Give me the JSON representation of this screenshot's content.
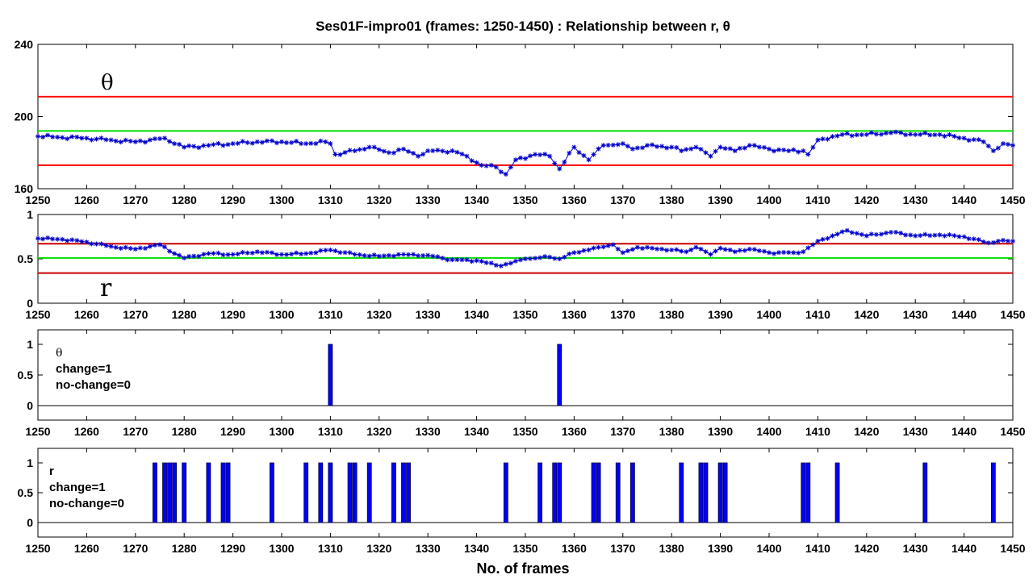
{
  "chart_data": {
    "title": "Ses01F-impro01 (frames: 1250-1450) : Relationship between r, θ",
    "xlabel": "No. of frames",
    "x_range": [
      1250,
      1450
    ],
    "x_ticks": [
      "1250",
      "1260",
      "1270",
      "1280",
      "1290",
      "1300",
      "1310",
      "1320",
      "1330",
      "1340",
      "1350",
      "1360",
      "1370",
      "1380",
      "1390",
      "1400",
      "1410",
      "1420",
      "1430",
      "1440",
      "1450"
    ],
    "panels": [
      {
        "type": "line",
        "label": "θ",
        "ylim": [
          160,
          240
        ],
        "y_ticks": [
          "160",
          "200",
          "240"
        ],
        "colors": {
          "series": "#0000cc",
          "upper": "#ff0000",
          "mid": "#00dd00",
          "lower": "#ff0000"
        },
        "thresholds": {
          "upper": 211,
          "mid": 192,
          "lower": 173
        },
        "anchors": [
          [
            1250,
            189
          ],
          [
            1260,
            188
          ],
          [
            1265,
            187
          ],
          [
            1270,
            186
          ],
          [
            1276,
            188
          ],
          [
            1280,
            183
          ],
          [
            1285,
            184
          ],
          [
            1290,
            185
          ],
          [
            1295,
            186
          ],
          [
            1300,
            186
          ],
          [
            1305,
            185
          ],
          [
            1309,
            186
          ],
          [
            1310,
            185
          ],
          [
            1311,
            179
          ],
          [
            1315,
            181
          ],
          [
            1318,
            183
          ],
          [
            1322,
            180
          ],
          [
            1325,
            182
          ],
          [
            1328,
            178
          ],
          [
            1330,
            181
          ],
          [
            1335,
            181
          ],
          [
            1338,
            178
          ],
          [
            1341,
            173
          ],
          [
            1344,
            172
          ],
          [
            1346,
            168
          ],
          [
            1348,
            176
          ],
          [
            1352,
            179
          ],
          [
            1355,
            178
          ],
          [
            1357,
            171
          ],
          [
            1360,
            183
          ],
          [
            1363,
            176
          ],
          [
            1366,
            184
          ],
          [
            1370,
            185
          ],
          [
            1372,
            182
          ],
          [
            1375,
            184
          ],
          [
            1380,
            183
          ],
          [
            1382,
            181
          ],
          [
            1385,
            183
          ],
          [
            1388,
            178
          ],
          [
            1390,
            183
          ],
          [
            1393,
            181
          ],
          [
            1396,
            184
          ],
          [
            1400,
            182
          ],
          [
            1404,
            181
          ],
          [
            1407,
            181
          ],
          [
            1408,
            179
          ],
          [
            1410,
            187
          ],
          [
            1415,
            190
          ],
          [
            1420,
            190
          ],
          [
            1425,
            191
          ],
          [
            1430,
            190
          ],
          [
            1435,
            190
          ],
          [
            1440,
            188
          ],
          [
            1444,
            186
          ],
          [
            1446,
            181
          ],
          [
            1448,
            185
          ],
          [
            1450,
            184
          ]
        ]
      },
      {
        "type": "line",
        "label": "r",
        "ylim": [
          0,
          1
        ],
        "y_ticks": [
          "0",
          "0.5",
          "1"
        ],
        "colors": {
          "series": "#0000cc",
          "upper": "#cc0000",
          "mid": "#00dd00",
          "lower": "#cc0000"
        },
        "thresholds": {
          "upper": 0.67,
          "mid": 0.51,
          "lower": 0.34
        },
        "anchors": [
          [
            1250,
            0.73
          ],
          [
            1255,
            0.72
          ],
          [
            1260,
            0.69
          ],
          [
            1265,
            0.64
          ],
          [
            1270,
            0.61
          ],
          [
            1275,
            0.66
          ],
          [
            1278,
            0.56
          ],
          [
            1280,
            0.51
          ],
          [
            1285,
            0.56
          ],
          [
            1290,
            0.55
          ],
          [
            1295,
            0.58
          ],
          [
            1300,
            0.55
          ],
          [
            1305,
            0.56
          ],
          [
            1310,
            0.6
          ],
          [
            1315,
            0.55
          ],
          [
            1320,
            0.53
          ],
          [
            1325,
            0.55
          ],
          [
            1330,
            0.54
          ],
          [
            1335,
            0.49
          ],
          [
            1340,
            0.48
          ],
          [
            1345,
            0.42
          ],
          [
            1350,
            0.5
          ],
          [
            1355,
            0.52
          ],
          [
            1357,
            0.5
          ],
          [
            1360,
            0.57
          ],
          [
            1365,
            0.63
          ],
          [
            1368,
            0.66
          ],
          [
            1370,
            0.57
          ],
          [
            1373,
            0.63
          ],
          [
            1376,
            0.62
          ],
          [
            1380,
            0.6
          ],
          [
            1383,
            0.58
          ],
          [
            1385,
            0.63
          ],
          [
            1388,
            0.55
          ],
          [
            1390,
            0.62
          ],
          [
            1393,
            0.58
          ],
          [
            1396,
            0.61
          ],
          [
            1400,
            0.57
          ],
          [
            1405,
            0.57
          ],
          [
            1407,
            0.58
          ],
          [
            1410,
            0.7
          ],
          [
            1413,
            0.76
          ],
          [
            1416,
            0.82
          ],
          [
            1420,
            0.76
          ],
          [
            1425,
            0.8
          ],
          [
            1430,
            0.76
          ],
          [
            1435,
            0.77
          ],
          [
            1440,
            0.75
          ],
          [
            1445,
            0.68
          ],
          [
            1447,
            0.7
          ],
          [
            1450,
            0.7
          ]
        ]
      },
      {
        "type": "bar",
        "label": "θ",
        "legend_lines": [
          "change=1",
          "no-change=0"
        ],
        "ylim": [
          0,
          1
        ],
        "y_ticks": [
          "0",
          "0.5",
          "1"
        ],
        "bar_color": "#0000ff",
        "bar_frames": [
          1310,
          1357
        ]
      },
      {
        "type": "bar",
        "label": "r",
        "legend_lines": [
          "change=1",
          "no-change=0"
        ],
        "ylim": [
          0,
          1
        ],
        "y_ticks": [
          "0",
          "0.5",
          "1"
        ],
        "bar_color": "#0000ff",
        "bar_frames": [
          1274,
          1276,
          1277,
          1278,
          1280,
          1285,
          1288,
          1289,
          1298,
          1305,
          1308,
          1310,
          1314,
          1315,
          1318,
          1323,
          1325,
          1326,
          1346,
          1353,
          1356,
          1357,
          1364,
          1365,
          1369,
          1372,
          1382,
          1386,
          1387,
          1390,
          1391,
          1407,
          1408,
          1414,
          1432,
          1446
        ]
      }
    ]
  }
}
